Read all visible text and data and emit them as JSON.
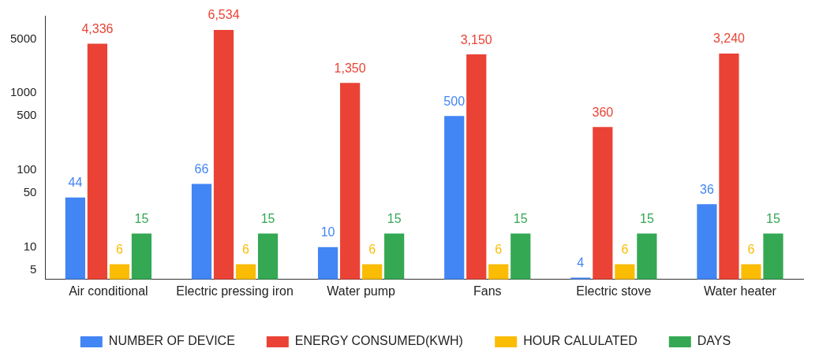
{
  "chart_data": {
    "type": "bar",
    "categories": [
      "Air conditional",
      "Electric pressing iron",
      "Water pump",
      "Fans",
      "Electric stove",
      "Water heater"
    ],
    "series": [
      {
        "name": "NUMBER OF DEVICE",
        "color": "#4285f4",
        "values": [
          44,
          66,
          10,
          500,
          4,
          36
        ],
        "value_labels": [
          "44",
          "66",
          "10",
          "500",
          "4",
          "36"
        ]
      },
      {
        "name": "ENERGY CONSUMED(KWH)",
        "color": "#ea4335",
        "values": [
          4336,
          6534,
          1350,
          3150,
          360,
          3240
        ],
        "value_labels": [
          "4,336",
          "6,534",
          "1,350",
          "3,150",
          "360",
          "3,240"
        ]
      },
      {
        "name": "HOUR CALULATED",
        "color": "#fbbc04",
        "values": [
          6,
          6,
          6,
          6,
          6,
          6
        ],
        "value_labels": [
          "6",
          "6",
          "6",
          "6",
          "6",
          "6"
        ]
      },
      {
        "name": "DAYS",
        "color": "#34a853",
        "values": [
          15,
          15,
          15,
          15,
          15,
          15
        ],
        "value_labels": [
          "15",
          "15",
          "15",
          "15",
          "15",
          "15"
        ]
      }
    ],
    "log": true,
    "ylim": [
      3.8,
      10000
    ],
    "yticks": [
      5,
      10,
      50,
      100,
      500,
      1000,
      5000
    ],
    "grid": false,
    "legend": "bottom"
  }
}
